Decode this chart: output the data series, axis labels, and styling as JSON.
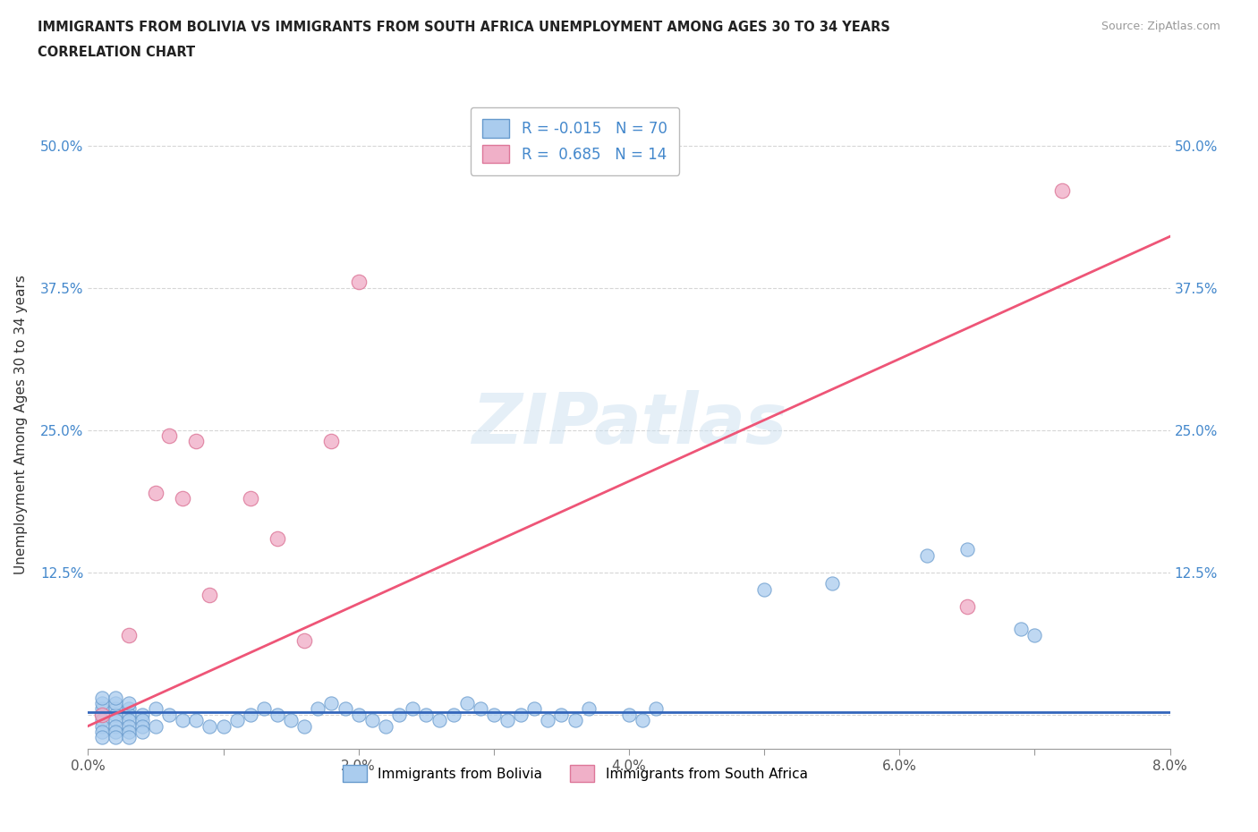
{
  "title_line1": "IMMIGRANTS FROM BOLIVIA VS IMMIGRANTS FROM SOUTH AFRICA UNEMPLOYMENT AMONG AGES 30 TO 34 YEARS",
  "title_line2": "CORRELATION CHART",
  "source_text": "Source: ZipAtlas.com",
  "ylabel": "Unemployment Among Ages 30 to 34 years",
  "xlim": [
    0.0,
    0.08
  ],
  "ylim": [
    -0.03,
    0.54
  ],
  "xticks": [
    0.0,
    0.01,
    0.02,
    0.03,
    0.04,
    0.05,
    0.06,
    0.07,
    0.08
  ],
  "xticklabels": [
    "0.0%",
    "",
    "2.0%",
    "",
    "4.0%",
    "",
    "6.0%",
    "",
    "8.0%"
  ],
  "yticks": [
    0.0,
    0.125,
    0.25,
    0.375,
    0.5
  ],
  "yticklabels": [
    "",
    "12.5%",
    "25.0%",
    "37.5%",
    "50.0%"
  ],
  "grid_color": "#cccccc",
  "watermark": "ZIPatlas",
  "bolivia_color": "#aaccee",
  "sa_color": "#f0b0c8",
  "bolivia_edge_color": "#6699cc",
  "sa_edge_color": "#dd7799",
  "bolivia_line_color": "#3366bb",
  "sa_line_color": "#ee5577",
  "bolivia_r": -0.015,
  "bolivia_n": 70,
  "sa_r": 0.685,
  "sa_n": 14,
  "bolivia_scatter": [
    [
      0.001,
      0.005
    ],
    [
      0.002,
      0.005
    ],
    [
      0.003,
      0.005
    ],
    [
      0.001,
      0.0
    ],
    [
      0.002,
      0.0
    ],
    [
      0.003,
      0.0
    ],
    [
      0.004,
      0.0
    ],
    [
      0.001,
      -0.005
    ],
    [
      0.002,
      -0.005
    ],
    [
      0.003,
      -0.005
    ],
    [
      0.004,
      -0.005
    ],
    [
      0.001,
      -0.01
    ],
    [
      0.002,
      -0.01
    ],
    [
      0.003,
      -0.01
    ],
    [
      0.004,
      -0.01
    ],
    [
      0.005,
      -0.01
    ],
    [
      0.001,
      -0.015
    ],
    [
      0.002,
      -0.015
    ],
    [
      0.003,
      -0.015
    ],
    [
      0.004,
      -0.015
    ],
    [
      0.001,
      -0.02
    ],
    [
      0.002,
      -0.02
    ],
    [
      0.003,
      -0.02
    ],
    [
      0.001,
      0.01
    ],
    [
      0.002,
      0.01
    ],
    [
      0.003,
      0.01
    ],
    [
      0.001,
      0.015
    ],
    [
      0.002,
      0.015
    ],
    [
      0.005,
      0.005
    ],
    [
      0.006,
      0.0
    ],
    [
      0.007,
      -0.005
    ],
    [
      0.008,
      -0.005
    ],
    [
      0.009,
      -0.01
    ],
    [
      0.01,
      -0.01
    ],
    [
      0.011,
      -0.005
    ],
    [
      0.012,
      0.0
    ],
    [
      0.013,
      0.005
    ],
    [
      0.014,
      0.0
    ],
    [
      0.015,
      -0.005
    ],
    [
      0.016,
      -0.01
    ],
    [
      0.017,
      0.005
    ],
    [
      0.018,
      0.01
    ],
    [
      0.019,
      0.005
    ],
    [
      0.02,
      0.0
    ],
    [
      0.021,
      -0.005
    ],
    [
      0.022,
      -0.01
    ],
    [
      0.023,
      0.0
    ],
    [
      0.024,
      0.005
    ],
    [
      0.025,
      0.0
    ],
    [
      0.026,
      -0.005
    ],
    [
      0.027,
      0.0
    ],
    [
      0.028,
      0.01
    ],
    [
      0.029,
      0.005
    ],
    [
      0.03,
      0.0
    ],
    [
      0.031,
      -0.005
    ],
    [
      0.032,
      0.0
    ],
    [
      0.033,
      0.005
    ],
    [
      0.034,
      -0.005
    ],
    [
      0.035,
      0.0
    ],
    [
      0.036,
      -0.005
    ],
    [
      0.037,
      0.005
    ],
    [
      0.04,
      0.0
    ],
    [
      0.041,
      -0.005
    ],
    [
      0.042,
      0.005
    ],
    [
      0.05,
      0.11
    ],
    [
      0.055,
      0.115
    ],
    [
      0.062,
      0.14
    ],
    [
      0.065,
      0.145
    ],
    [
      0.069,
      0.075
    ],
    [
      0.07,
      0.07
    ]
  ],
  "sa_scatter": [
    [
      0.001,
      0.0
    ],
    [
      0.003,
      0.07
    ],
    [
      0.005,
      0.195
    ],
    [
      0.006,
      0.245
    ],
    [
      0.007,
      0.19
    ],
    [
      0.008,
      0.24
    ],
    [
      0.009,
      0.105
    ],
    [
      0.012,
      0.19
    ],
    [
      0.014,
      0.155
    ],
    [
      0.016,
      0.065
    ],
    [
      0.018,
      0.24
    ],
    [
      0.02,
      0.38
    ],
    [
      0.065,
      0.095
    ],
    [
      0.072,
      0.46
    ]
  ],
  "bolivia_line": [
    [
      0.0,
      0.002
    ],
    [
      0.08,
      0.002
    ]
  ],
  "sa_line": [
    [
      0.0,
      -0.01
    ],
    [
      0.08,
      0.42
    ]
  ]
}
